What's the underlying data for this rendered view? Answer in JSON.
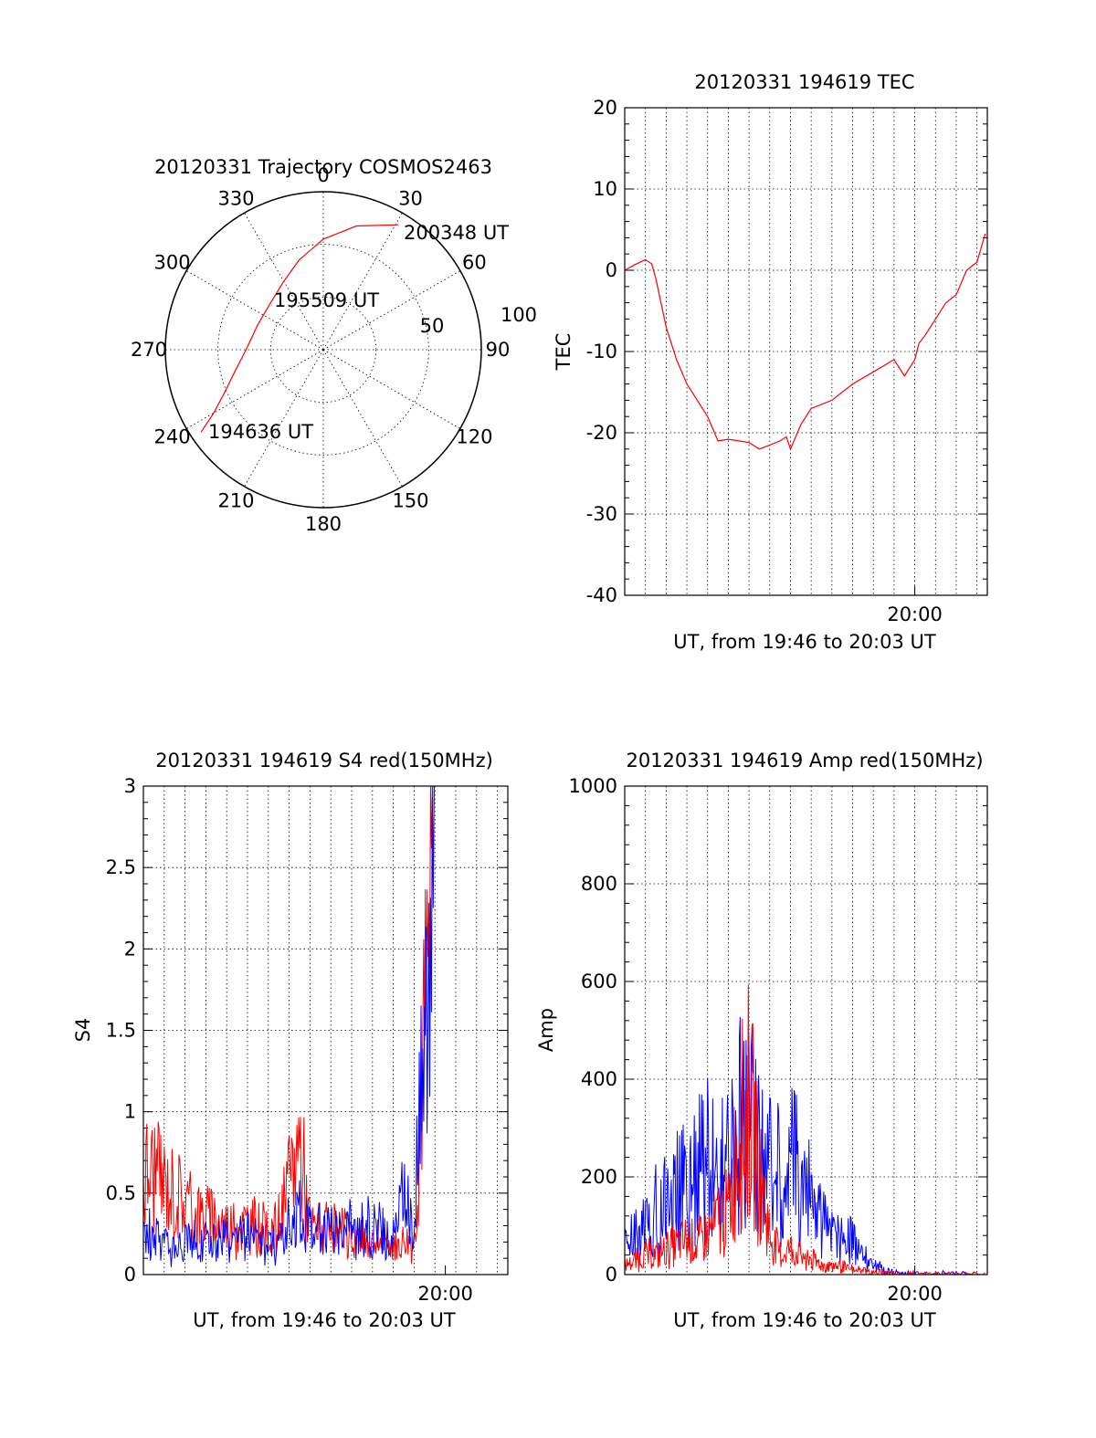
{
  "colors": {
    "red": "#ff0000",
    "blue": "#0000ff",
    "black": "#000000"
  },
  "chart_data": [
    {
      "type": "polar",
      "title": "20120331 Trajectory COSMOS2463",
      "angle_labels": [
        "0",
        "30",
        "60",
        "90",
        "120",
        "150",
        "180",
        "210",
        "240",
        "270",
        "300",
        "330"
      ],
      "radius_labels": [
        "50",
        "100"
      ],
      "annotations": [
        {
          "text": "200348 UT",
          "azimuth": 30,
          "elevation": 10
        },
        {
          "text": "195509 UT",
          "azimuth": 330,
          "elevation": 52
        },
        {
          "text": "194636 UT",
          "azimuth": 232,
          "elevation": 12
        }
      ],
      "track": [
        {
          "az": 236,
          "el": 6
        },
        {
          "az": 240,
          "el": 18
        },
        {
          "az": 246,
          "el": 28
        },
        {
          "az": 256,
          "el": 38
        },
        {
          "az": 270,
          "el": 46
        },
        {
          "az": 290,
          "el": 50
        },
        {
          "az": 310,
          "el": 50
        },
        {
          "az": 330,
          "el": 45
        },
        {
          "az": 345,
          "el": 37
        },
        {
          "az": 360,
          "el": 27
        },
        {
          "az": 375,
          "el": 17
        },
        {
          "az": 391,
          "el": 7
        }
      ],
      "track_color": "#ff0000"
    },
    {
      "type": "line",
      "title": "20120331 194619 TEC",
      "ylabel": "TEC",
      "xlabel": "UT, from 19:46 to 20:03 UT",
      "ylim": [
        -40,
        20
      ],
      "yticks": [
        "20",
        "10",
        "0",
        "-10",
        "-20",
        "-30",
        "-40"
      ],
      "xlim_minutes": [
        0,
        17.5
      ],
      "xtick_label": "20:00",
      "xtick_minute": 14,
      "grid": true,
      "series": [
        {
          "name": "TEC",
          "color": "#ff0000",
          "x": [
            0,
            0.5,
            1,
            1.3,
            1.5,
            2,
            2.5,
            3,
            4,
            4.5,
            5,
            5.5,
            6,
            6.5,
            7,
            7.5,
            7.8,
            8,
            8.5,
            9,
            10,
            11,
            12,
            13,
            13.5,
            14,
            14.2,
            14.5,
            15,
            15.5,
            16,
            16.5,
            17,
            17.4
          ],
          "y": [
            0,
            0.7,
            1.3,
            0.8,
            -1,
            -7,
            -11,
            -14,
            -18,
            -21,
            -20.8,
            -21,
            -21.2,
            -22,
            -21.5,
            -21,
            -20.5,
            -22,
            -19,
            -17,
            -16,
            -14,
            -12.5,
            -11,
            -13,
            -11,
            -9,
            -8,
            -6,
            -4,
            -3,
            0,
            1,
            4.5
          ]
        }
      ]
    },
    {
      "type": "line",
      "title": "20120331 194619 S4 red(150MHz)",
      "ylabel": "S4",
      "xlabel": "UT, from 19:46 to 20:03 UT",
      "ylim": [
        0,
        3
      ],
      "yticks": [
        "3",
        "2.5",
        "2",
        "1.5",
        "1",
        "0.5",
        "0"
      ],
      "xlim_minutes": [
        0,
        17.5
      ],
      "xtick_label": "20:00",
      "xtick_minute": 14.5,
      "grid": true,
      "series": [
        {
          "name": "red (150MHz)",
          "color": "#ff0000",
          "x": [
            0,
            0.5,
            1,
            1.5,
            2,
            2.5,
            3,
            3.5,
            4,
            4.5,
            5,
            5.5,
            6,
            6.5,
            7,
            7.5,
            8,
            8.5,
            9,
            9.5,
            10,
            10.5,
            11,
            11.5,
            12,
            12.5,
            13,
            13.5,
            14
          ],
          "y": [
            0.6,
            0.65,
            0.55,
            0.5,
            0.45,
            0.4,
            0.35,
            0.35,
            0.3,
            0.3,
            0.3,
            0.3,
            0.25,
            0.3,
            0.55,
            0.85,
            0.3,
            0.28,
            0.25,
            0.25,
            0.22,
            0.22,
            0.2,
            0.2,
            0.18,
            0.2,
            0.2,
            1.5,
            2.5
          ]
        },
        {
          "name": "blue",
          "color": "#0000ff",
          "x": [
            0,
            0.5,
            1,
            1.5,
            2,
            2.5,
            3,
            3.5,
            4,
            4.5,
            5,
            5.5,
            6,
            6.5,
            7,
            7.5,
            8,
            8.5,
            9,
            9.5,
            10,
            10.5,
            11,
            11.5,
            12,
            12.5,
            13,
            13.5,
            14
          ],
          "y": [
            0.25,
            0.22,
            0.2,
            0.2,
            0.2,
            0.22,
            0.2,
            0.22,
            0.2,
            0.2,
            0.25,
            0.2,
            0.18,
            0.2,
            0.3,
            0.4,
            0.3,
            0.25,
            0.28,
            0.25,
            0.3,
            0.28,
            0.3,
            0.25,
            0.22,
            0.5,
            0.3,
            1.6,
            2.8
          ]
        }
      ]
    },
    {
      "type": "line",
      "title": "20120331 194619 Amp red(150MHz)",
      "ylabel": "Amp",
      "xlabel": "UT, from 19:46 to 20:03 UT",
      "ylim": [
        0,
        1000
      ],
      "yticks": [
        "1000",
        "800",
        "600",
        "400",
        "200",
        "0"
      ],
      "xlim_minutes": [
        0,
        17.5
      ],
      "xtick_label": "20:00",
      "xtick_minute": 14,
      "grid": true,
      "series": [
        {
          "name": "blue",
          "color": "#0000ff",
          "x": [
            0,
            0.5,
            1,
            1.5,
            2,
            2.5,
            3,
            3.5,
            4,
            4.5,
            5,
            5.5,
            6,
            6.5,
            7,
            7.5,
            8,
            8.5,
            9,
            9.5,
            10,
            10.5,
            11,
            11.5,
            12,
            12.5,
            13,
            13.5,
            14,
            15,
            16,
            17.5
          ],
          "y": [
            60,
            80,
            100,
            130,
            160,
            170,
            180,
            210,
            230,
            200,
            210,
            320,
            300,
            270,
            230,
            200,
            240,
            210,
            150,
            110,
            90,
            80,
            70,
            40,
            20,
            10,
            5,
            2,
            2,
            2,
            2,
            2
          ]
        },
        {
          "name": "red (150MHz)",
          "color": "#ff0000",
          "x": [
            0,
            0.5,
            1,
            1.5,
            2,
            2.5,
            3,
            3.5,
            4,
            4.5,
            5,
            5.5,
            6,
            6.5,
            7,
            7.5,
            8,
            8.5,
            9,
            9.5,
            10,
            10.5,
            11,
            11.5,
            12,
            12.5,
            13,
            13.5,
            14,
            15,
            16,
            17.5
          ],
          "y": [
            20,
            30,
            40,
            40,
            50,
            60,
            70,
            60,
            80,
            110,
            130,
            280,
            350,
            200,
            80,
            40,
            50,
            40,
            30,
            20,
            20,
            15,
            10,
            8,
            5,
            3,
            2,
            1,
            1,
            1,
            1,
            1
          ]
        }
      ]
    }
  ]
}
